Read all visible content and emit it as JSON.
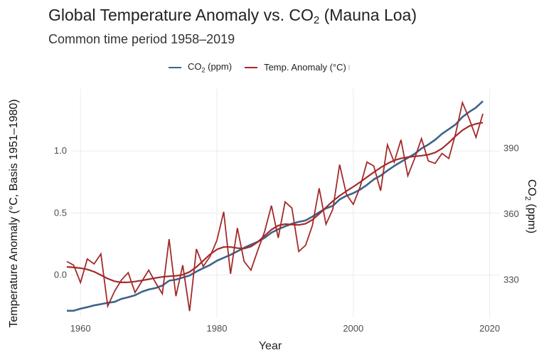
{
  "chart_data": {
    "type": "line",
    "title_main": "Global Temperature Anomaly vs. CO",
    "title_sub2": "2",
    "title_tail": " (Mauna Loa)",
    "subtitle": "Common time period 1958–2019",
    "xlabel": "Year",
    "ylabel_left": "Temperature Anomaly (°C, Basis 1951–1980)",
    "ylabel_right_main": "CO",
    "ylabel_right_sub": "2",
    "ylabel_right_tail": " (ppm)",
    "xlim": [
      1955.5,
      2021.5
    ],
    "ylim_left": [
      -0.34,
      1.5
    ],
    "ylim_right": [
      313.0,
      417.0
    ],
    "x_ticks": [
      1960,
      1980,
      2000,
      2020
    ],
    "x_tick_labels": [
      "1960",
      "1980",
      "2000",
      "2020"
    ],
    "y_left_ticks": [
      0.0,
      0.5,
      1.0
    ],
    "y_left_tick_labels": [
      "0.0",
      "0.5",
      "1.0"
    ],
    "y_right_ticks": [
      330,
      360,
      390
    ],
    "y_right_tick_labels": [
      "330",
      "360",
      "390"
    ],
    "grid": true,
    "legend_position": "top",
    "legend": [
      {
        "name_main": "CO",
        "name_sub": "2",
        "name_tail": " (ppm)",
        "color": "#3d6489"
      },
      {
        "name_main": "Temp. Anomaly (°C)",
        "name_sub": "",
        "name_tail": "",
        "color": "#a42a2a"
      }
    ],
    "x": [
      1958,
      1959,
      1960,
      1961,
      1962,
      1963,
      1964,
      1965,
      1966,
      1967,
      1968,
      1969,
      1970,
      1971,
      1972,
      1973,
      1974,
      1975,
      1976,
      1977,
      1978,
      1979,
      1980,
      1981,
      1982,
      1983,
      1984,
      1985,
      1986,
      1987,
      1988,
      1989,
      1990,
      1991,
      1992,
      1993,
      1994,
      1995,
      1996,
      1997,
      1998,
      1999,
      2000,
      2001,
      2002,
      2003,
      2004,
      2005,
      2006,
      2007,
      2008,
      2009,
      2010,
      2011,
      2012,
      2013,
      2014,
      2015,
      2016,
      2017,
      2018,
      2019
    ],
    "series": [
      {
        "name": "Temp. Anomaly (°C)",
        "axis": "left",
        "values": [
          0.11,
          0.08,
          -0.06,
          0.13,
          0.09,
          0.17,
          -0.25,
          -0.13,
          -0.04,
          0.02,
          -0.14,
          -0.05,
          0.04,
          -0.06,
          -0.15,
          0.29,
          -0.17,
          0.08,
          -0.29,
          0.21,
          0.07,
          0.15,
          0.28,
          0.51,
          0.01,
          0.38,
          0.11,
          0.04,
          0.2,
          0.35,
          0.56,
          0.3,
          0.59,
          0.54,
          0.19,
          0.24,
          0.4,
          0.7,
          0.41,
          0.53,
          0.89,
          0.65,
          0.57,
          0.71,
          0.91,
          0.88,
          0.68,
          1.05,
          0.91,
          1.09,
          0.8,
          0.94,
          1.1,
          0.92,
          0.9,
          0.98,
          0.94,
          1.14,
          1.39,
          1.26,
          1.11,
          1.3
        ]
      },
      {
        "name": "Temp. Anomaly (°C) smoothed",
        "axis": "left",
        "smoothed_from": "Temp. Anomaly (°C)"
      },
      {
        "name": "CO2 (ppm)",
        "axis": "right",
        "values": [
          315.97,
          315.97,
          316.91,
          317.64,
          318.45,
          318.99,
          319.62,
          320.04,
          321.38,
          322.16,
          323.04,
          324.62,
          325.68,
          326.32,
          327.45,
          329.68,
          330.18,
          331.11,
          332.04,
          333.83,
          335.4,
          336.84,
          338.75,
          340.11,
          341.45,
          343.05,
          344.65,
          346.12,
          347.42,
          349.19,
          351.57,
          353.12,
          354.39,
          355.61,
          356.45,
          357.1,
          358.83,
          360.82,
          362.61,
          363.73,
          366.7,
          368.38,
          369.55,
          371.14,
          373.28,
          375.8,
          377.52,
          379.8,
          381.9,
          383.79,
          385.6,
          387.43,
          389.9,
          391.65,
          393.85,
          396.52,
          398.65,
          400.83,
          404.24,
          406.55,
          408.52,
          411.44
        ]
      }
    ]
  }
}
